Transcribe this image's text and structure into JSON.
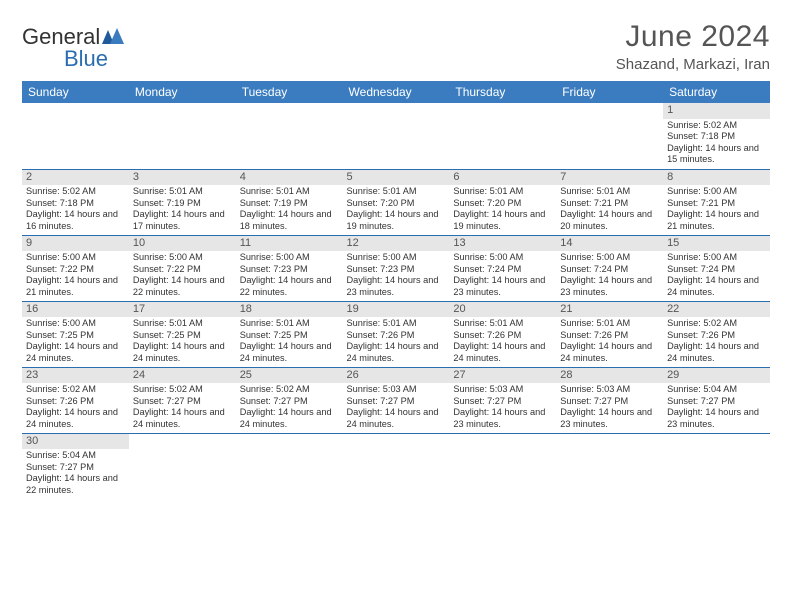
{
  "brand": {
    "name_a": "General",
    "name_b": "Blue"
  },
  "title": "June 2024",
  "location": "Shazand, Markazi, Iran",
  "day_headers": [
    "Sunday",
    "Monday",
    "Tuesday",
    "Wednesday",
    "Thursday",
    "Friday",
    "Saturday"
  ],
  "colors": {
    "header_bg": "#3a7cbf",
    "header_fg": "#ffffff",
    "daynum_bg": "#e6e6e6",
    "border": "#2a6db0",
    "text": "#333333"
  },
  "first_weekday_index": 6,
  "num_days": 30,
  "days": [
    {
      "n": 1,
      "sr": "5:02 AM",
      "ss": "7:18 PM",
      "dl": "14 hours and 15 minutes."
    },
    {
      "n": 2,
      "sr": "5:02 AM",
      "ss": "7:18 PM",
      "dl": "14 hours and 16 minutes."
    },
    {
      "n": 3,
      "sr": "5:01 AM",
      "ss": "7:19 PM",
      "dl": "14 hours and 17 minutes."
    },
    {
      "n": 4,
      "sr": "5:01 AM",
      "ss": "7:19 PM",
      "dl": "14 hours and 18 minutes."
    },
    {
      "n": 5,
      "sr": "5:01 AM",
      "ss": "7:20 PM",
      "dl": "14 hours and 19 minutes."
    },
    {
      "n": 6,
      "sr": "5:01 AM",
      "ss": "7:20 PM",
      "dl": "14 hours and 19 minutes."
    },
    {
      "n": 7,
      "sr": "5:01 AM",
      "ss": "7:21 PM",
      "dl": "14 hours and 20 minutes."
    },
    {
      "n": 8,
      "sr": "5:00 AM",
      "ss": "7:21 PM",
      "dl": "14 hours and 21 minutes."
    },
    {
      "n": 9,
      "sr": "5:00 AM",
      "ss": "7:22 PM",
      "dl": "14 hours and 21 minutes."
    },
    {
      "n": 10,
      "sr": "5:00 AM",
      "ss": "7:22 PM",
      "dl": "14 hours and 22 minutes."
    },
    {
      "n": 11,
      "sr": "5:00 AM",
      "ss": "7:23 PM",
      "dl": "14 hours and 22 minutes."
    },
    {
      "n": 12,
      "sr": "5:00 AM",
      "ss": "7:23 PM",
      "dl": "14 hours and 23 minutes."
    },
    {
      "n": 13,
      "sr": "5:00 AM",
      "ss": "7:24 PM",
      "dl": "14 hours and 23 minutes."
    },
    {
      "n": 14,
      "sr": "5:00 AM",
      "ss": "7:24 PM",
      "dl": "14 hours and 23 minutes."
    },
    {
      "n": 15,
      "sr": "5:00 AM",
      "ss": "7:24 PM",
      "dl": "14 hours and 24 minutes."
    },
    {
      "n": 16,
      "sr": "5:00 AM",
      "ss": "7:25 PM",
      "dl": "14 hours and 24 minutes."
    },
    {
      "n": 17,
      "sr": "5:01 AM",
      "ss": "7:25 PM",
      "dl": "14 hours and 24 minutes."
    },
    {
      "n": 18,
      "sr": "5:01 AM",
      "ss": "7:25 PM",
      "dl": "14 hours and 24 minutes."
    },
    {
      "n": 19,
      "sr": "5:01 AM",
      "ss": "7:26 PM",
      "dl": "14 hours and 24 minutes."
    },
    {
      "n": 20,
      "sr": "5:01 AM",
      "ss": "7:26 PM",
      "dl": "14 hours and 24 minutes."
    },
    {
      "n": 21,
      "sr": "5:01 AM",
      "ss": "7:26 PM",
      "dl": "14 hours and 24 minutes."
    },
    {
      "n": 22,
      "sr": "5:02 AM",
      "ss": "7:26 PM",
      "dl": "14 hours and 24 minutes."
    },
    {
      "n": 23,
      "sr": "5:02 AM",
      "ss": "7:26 PM",
      "dl": "14 hours and 24 minutes."
    },
    {
      "n": 24,
      "sr": "5:02 AM",
      "ss": "7:27 PM",
      "dl": "14 hours and 24 minutes."
    },
    {
      "n": 25,
      "sr": "5:02 AM",
      "ss": "7:27 PM",
      "dl": "14 hours and 24 minutes."
    },
    {
      "n": 26,
      "sr": "5:03 AM",
      "ss": "7:27 PM",
      "dl": "14 hours and 24 minutes."
    },
    {
      "n": 27,
      "sr": "5:03 AM",
      "ss": "7:27 PM",
      "dl": "14 hours and 23 minutes."
    },
    {
      "n": 28,
      "sr": "5:03 AM",
      "ss": "7:27 PM",
      "dl": "14 hours and 23 minutes."
    },
    {
      "n": 29,
      "sr": "5:04 AM",
      "ss": "7:27 PM",
      "dl": "14 hours and 23 minutes."
    },
    {
      "n": 30,
      "sr": "5:04 AM",
      "ss": "7:27 PM",
      "dl": "14 hours and 22 minutes."
    }
  ],
  "labels": {
    "sunrise": "Sunrise:",
    "sunset": "Sunset:",
    "daylight": "Daylight:"
  }
}
